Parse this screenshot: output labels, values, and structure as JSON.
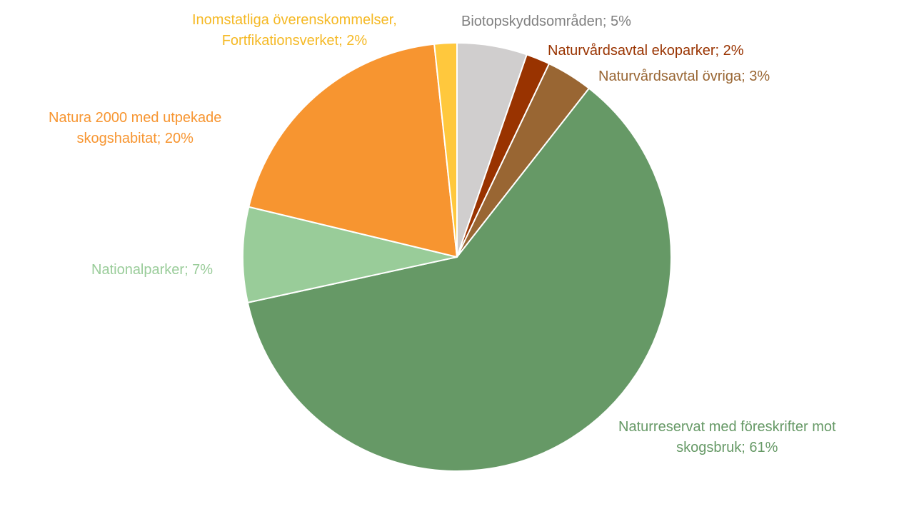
{
  "chart_data": {
    "type": "pie",
    "title": "",
    "slices": [
      {
        "key": "biotop",
        "lines": [
          "Biotopskyddsområden; 5%"
        ],
        "value": 5.3,
        "color": "#d0cece"
      },
      {
        "key": "ekoparker",
        "lines": [
          "Naturvårdsavtal ekoparker; 2%"
        ],
        "value": 1.8,
        "color": "#993300"
      },
      {
        "key": "ovriga",
        "lines": [
          "Naturvårdsavtal övriga; 3%"
        ],
        "value": 3.5,
        "color": "#996633"
      },
      {
        "key": "naturreservat",
        "lines": [
          "Naturreservat med föreskrifter mot",
          "skogsbruk; 61%"
        ],
        "value": 61.2,
        "color": "#669966"
      },
      {
        "key": "nationalparker",
        "lines": [
          "Nationalparker; 7%"
        ],
        "value": 7.2,
        "color": "#99cc99"
      },
      {
        "key": "natura2000",
        "lines": [
          "Natura 2000 med utpekade",
          "skogshabitat; 20%"
        ],
        "value": 19.6,
        "color": "#f79530"
      },
      {
        "key": "inomstatliga",
        "lines": [
          "Inomstatliga överenskommelser,",
          "Fortfikationsverket; 2%"
        ],
        "value": 1.7,
        "color": "#ffc83d"
      }
    ],
    "label_colors": {
      "biotop": "#808080",
      "ekoparker": "#993300",
      "ovriga": "#996633",
      "naturreservat": "#669966",
      "nationalparker": "#99cc99",
      "natura2000": "#f79530",
      "inomstatliga": "#f5b925"
    },
    "start_angle_deg": 0,
    "direction": "clockwise",
    "legend": "none"
  }
}
